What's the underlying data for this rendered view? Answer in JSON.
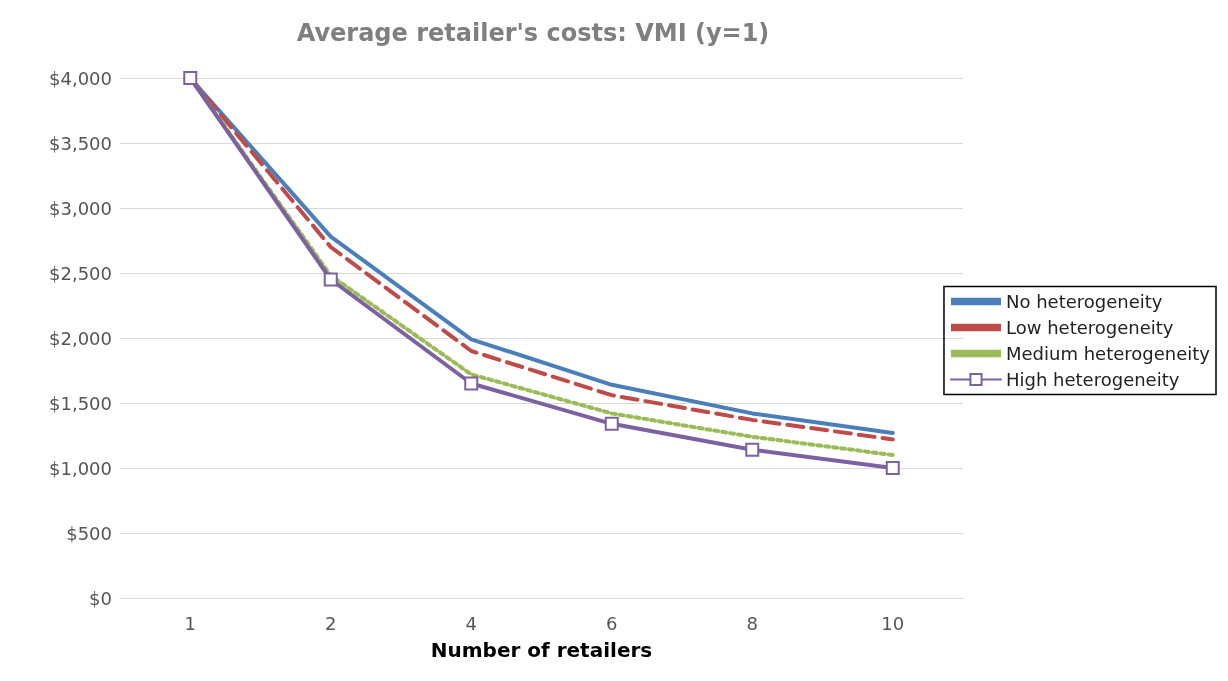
{
  "chart_data": {
    "type": "line",
    "title": "Average retailer's costs: VMI (y=1)",
    "xlabel": "Number of retailers",
    "categories": [
      "1",
      "2",
      "4",
      "6",
      "8",
      "10"
    ],
    "series": [
      {
        "name": "No heterogeneity",
        "color": "#4a7ebb",
        "line_style": "solid",
        "marker": "none",
        "values": [
          4000,
          2780,
          1990,
          1640,
          1420,
          1270
        ]
      },
      {
        "name": "Low heterogeneity",
        "color": "#be4b48",
        "line_style": "dashed",
        "marker": "none",
        "values": [
          4000,
          2700,
          1900,
          1560,
          1370,
          1220
        ]
      },
      {
        "name": "Medium heterogeneity",
        "color": "#9bbb59",
        "line_style": "dotted",
        "marker": "none",
        "values": [
          4000,
          2480,
          1720,
          1420,
          1240,
          1100
        ]
      },
      {
        "name": "High heterogeneity",
        "color": "#7d60a0",
        "line_style": "solid",
        "marker": "square",
        "values": [
          4000,
          2450,
          1650,
          1340,
          1140,
          1000
        ]
      }
    ],
    "ylim": [
      0,
      4000
    ],
    "yticks": [
      {
        "value": 0,
        "label": "$0"
      },
      {
        "value": 500,
        "label": "$500"
      },
      {
        "value": 1000,
        "label": "$1,000"
      },
      {
        "value": 1500,
        "label": "$1,500"
      },
      {
        "value": 2000,
        "label": "$2,000"
      },
      {
        "value": 2500,
        "label": "$2,500"
      },
      {
        "value": 3000,
        "label": "$3,000"
      },
      {
        "value": 3500,
        "label": "$3,500"
      },
      {
        "value": 4000,
        "label": "$4,000"
      }
    ],
    "grid": "y",
    "legend": "right"
  }
}
